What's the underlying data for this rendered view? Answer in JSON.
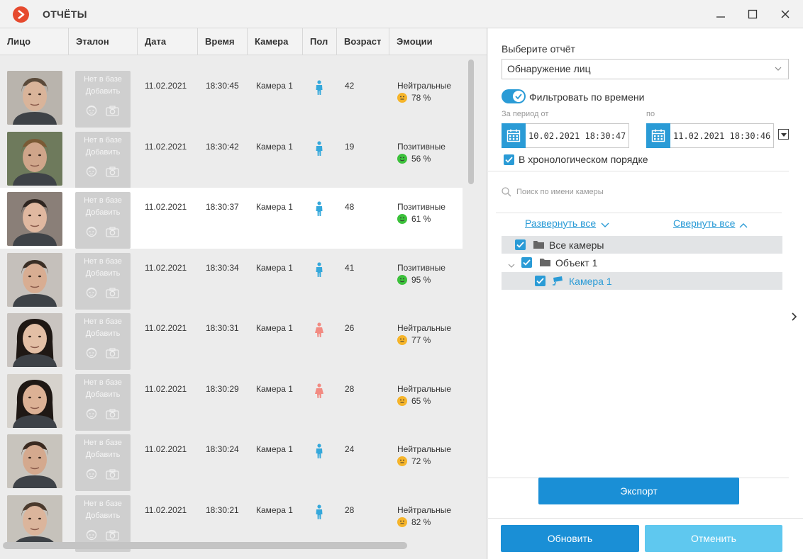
{
  "window": {
    "title": "ОТЧЁТЫ"
  },
  "table": {
    "headers": [
      "Лицо",
      "Эталон",
      "Дата",
      "Время",
      "Камера",
      "Пол",
      "Возраст",
      "Эмоции"
    ],
    "etalon_status": "Нет в базе",
    "etalon_add": "Добавить",
    "rows": [
      {
        "date": "11.02.2021",
        "time": "18:30:45",
        "camera": "Камера 1",
        "gender": "male",
        "age": "42",
        "emotion": "Нейтральные",
        "confidence": "78 %"
      },
      {
        "date": "11.02.2021",
        "time": "18:30:42",
        "camera": "Камера 1",
        "gender": "male",
        "age": "19",
        "emotion": "Позитивные",
        "confidence": "56 %"
      },
      {
        "date": "11.02.2021",
        "time": "18:30:37",
        "camera": "Камера 1",
        "gender": "male",
        "age": "48",
        "emotion": "Позитивные",
        "confidence": "61 %"
      },
      {
        "date": "11.02.2021",
        "time": "18:30:34",
        "camera": "Камера 1",
        "gender": "male",
        "age": "41",
        "emotion": "Позитивные",
        "confidence": "95 %"
      },
      {
        "date": "11.02.2021",
        "time": "18:30:31",
        "camera": "Камера 1",
        "gender": "female",
        "age": "26",
        "emotion": "Нейтральные",
        "confidence": "77 %"
      },
      {
        "date": "11.02.2021",
        "time": "18:30:29",
        "camera": "Камера 1",
        "gender": "female",
        "age": "28",
        "emotion": "Нейтральные",
        "confidence": "65 %"
      },
      {
        "date": "11.02.2021",
        "time": "18:30:24",
        "camera": "Камера 1",
        "gender": "male",
        "age": "24",
        "emotion": "Нейтральные",
        "confidence": "72 %"
      },
      {
        "date": "11.02.2021",
        "time": "18:30:21",
        "camera": "Камера 1",
        "gender": "male",
        "age": "28",
        "emotion": "Нейтральные",
        "confidence": "82 %"
      }
    ]
  },
  "panel": {
    "choose_label": "Выберите отчёт",
    "report_value": "Обнаружение лиц",
    "filter_label": "Фильтровать по времени",
    "from_label": "За период от",
    "to_label": "по",
    "from_value": "10.02.2021  18:30:47",
    "to_value": "11.02.2021  18:30:46",
    "chrono_label": "В хронологическом порядке",
    "search_placeholder": "Поиск по имени камеры",
    "expand_all": "Развернуть все",
    "collapse_all": "Свернуть все",
    "tree": {
      "all": "Все камеры",
      "object": "Объект 1",
      "camera": "Камера 1"
    },
    "export": "Экспорт",
    "refresh": "Обновить",
    "cancel": "Отменить"
  },
  "colors": {
    "accent": "#1a8fd6",
    "cancel": "#5fc8ef",
    "male": "#35a8db",
    "female": "#f28b82",
    "neutral": "#f5b42a",
    "positive": "#3cc13b",
    "logo": "#e64a2e"
  }
}
